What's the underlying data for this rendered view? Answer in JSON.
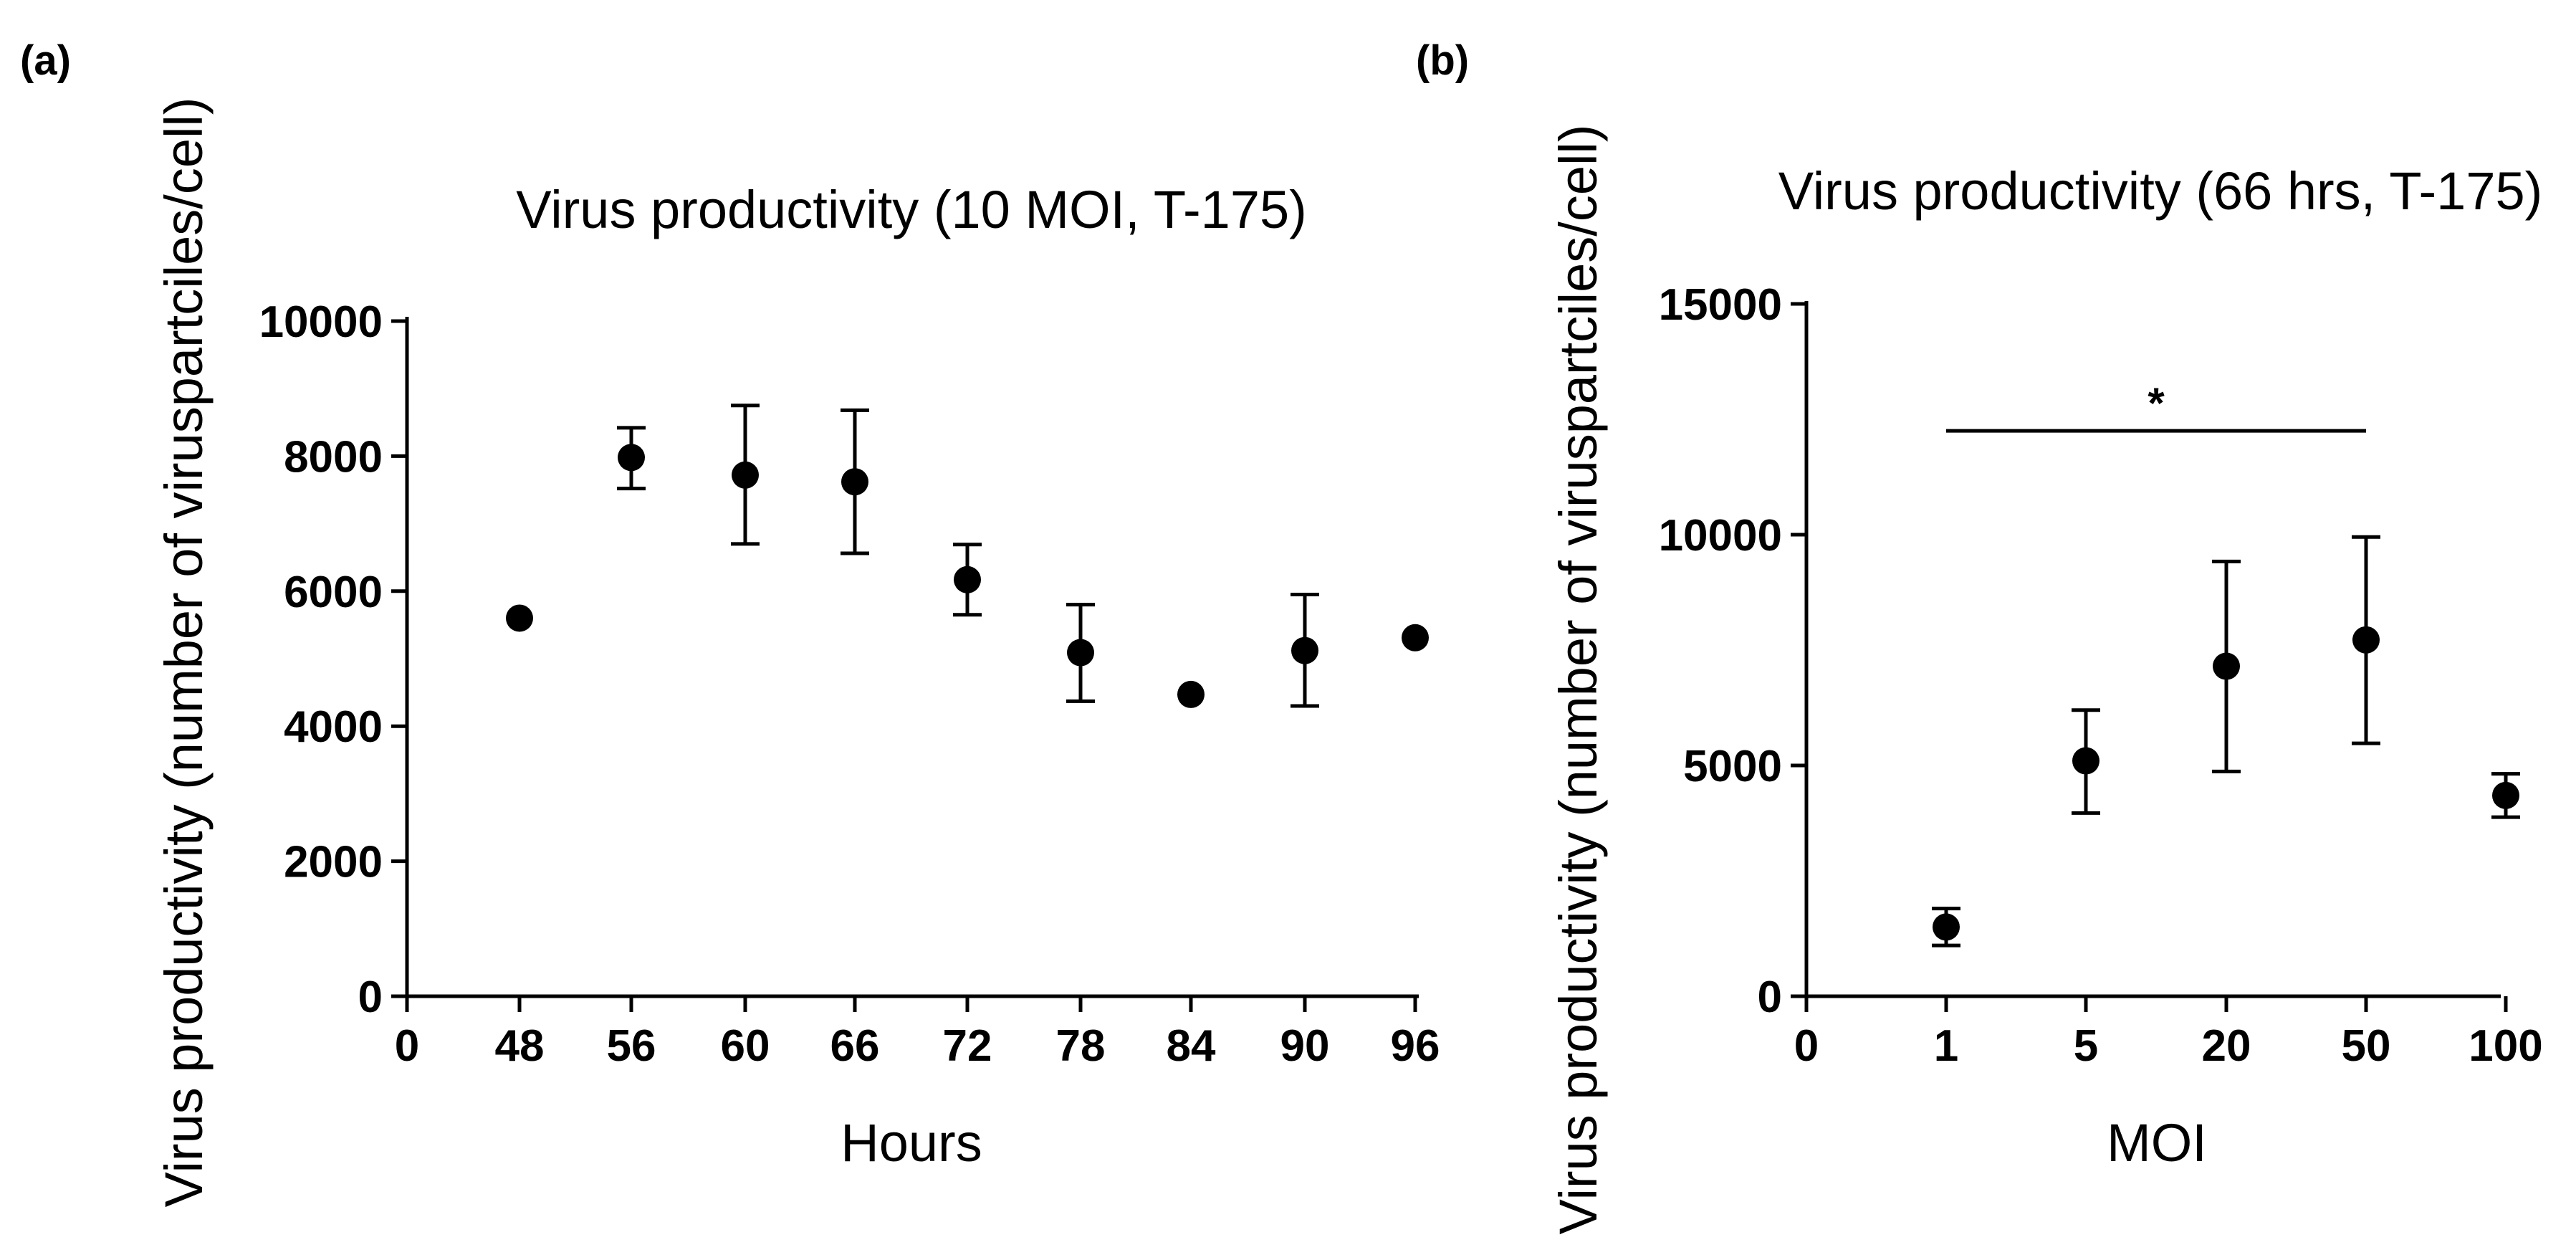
{
  "chart_data": [
    {
      "type": "scatter",
      "panel": "(a)",
      "title": "Virus productivity (10 MOI, T-175)",
      "xlabel": "Hours",
      "ylabel": "Virus productivity (number of viruspartciles/cell)",
      "x_categories": [
        "0",
        "48",
        "56",
        "60",
        "66",
        "72",
        "78",
        "84",
        "90",
        "96"
      ],
      "y_ticks": [
        "0",
        "2000",
        "4000",
        "6000",
        "8000",
        "10000"
      ],
      "ylim": [
        0,
        10000
      ],
      "points": [
        {
          "x": "48",
          "y": 5600,
          "err_low": 5600,
          "err_high": 5600
        },
        {
          "x": "56",
          "y": 7980,
          "err_low": 7520,
          "err_high": 8420
        },
        {
          "x": "60",
          "y": 7720,
          "err_low": 6700,
          "err_high": 8750
        },
        {
          "x": "66",
          "y": 7620,
          "err_low": 6560,
          "err_high": 8680
        },
        {
          "x": "72",
          "y": 6170,
          "err_low": 5650,
          "err_high": 6690
        },
        {
          "x": "78",
          "y": 5090,
          "err_low": 4370,
          "err_high": 5800
        },
        {
          "x": "84",
          "y": 4470,
          "err_low": 4470,
          "err_high": 4470
        },
        {
          "x": "90",
          "y": 5120,
          "err_low": 4300,
          "err_high": 5950
        },
        {
          "x": "96",
          "y": 5310,
          "err_low": 5310,
          "err_high": 5310
        }
      ]
    },
    {
      "type": "scatter",
      "panel": "(b)",
      "title": "Virus productivity (66 hrs, T-175)",
      "xlabel": "MOI",
      "ylabel": "Virus productivity (number of viruspartciles/cell)",
      "x_categories": [
        "0",
        "1",
        "5",
        "20",
        "50",
        "100"
      ],
      "y_ticks": [
        "0",
        "5000",
        "10000",
        "15000"
      ],
      "ylim": [
        0,
        15000
      ],
      "significance": {
        "label": "*",
        "from": "1",
        "to": "50",
        "y": 12250
      },
      "points": [
        {
          "x": "1",
          "y": 1500,
          "err_low": 1100,
          "err_high": 1900
        },
        {
          "x": "5",
          "y": 5100,
          "err_low": 3970,
          "err_high": 6200
        },
        {
          "x": "20",
          "y": 7150,
          "err_low": 4870,
          "err_high": 9420
        },
        {
          "x": "50",
          "y": 7720,
          "err_low": 5480,
          "err_high": 9950
        },
        {
          "x": "100",
          "y": 4350,
          "err_low": 3880,
          "err_high": 4820
        }
      ]
    }
  ]
}
